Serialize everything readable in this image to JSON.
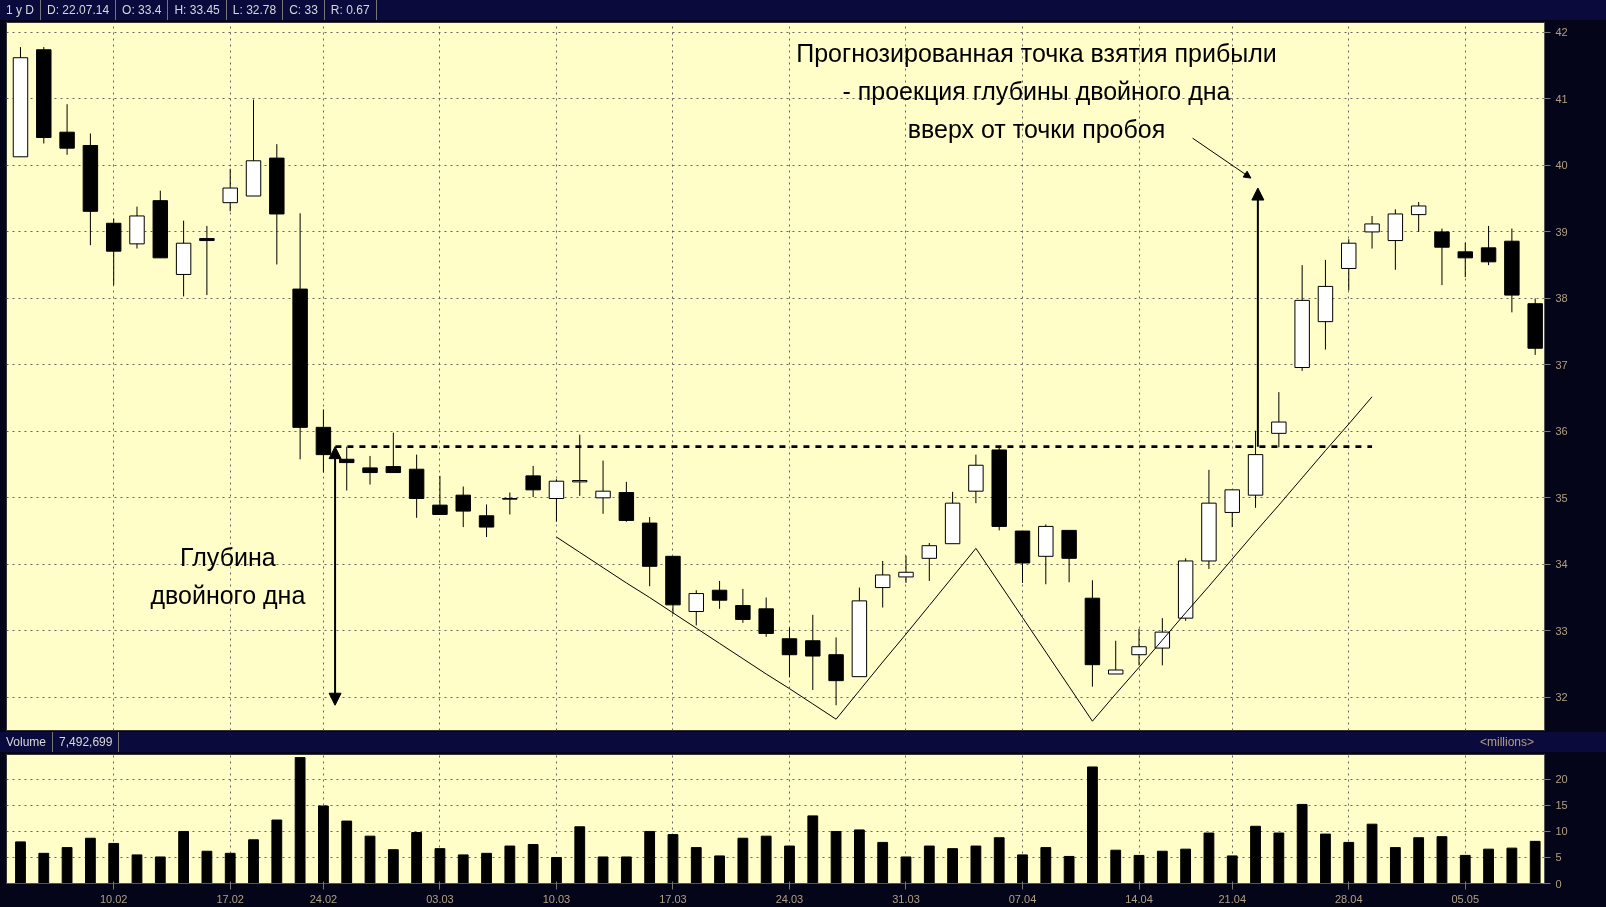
{
  "chart_data": [
    {
      "type": "candlestick",
      "annotations": [
        "1 y D",
        "D: 22.07.14",
        "O: 33.4",
        "H: 33.45",
        "L: 32.78",
        "C: 33",
        "R: 0.67",
        "Глубина\nдвойного дна",
        "Прогнозированная точка взятия прибыли\n- проекция глубины двойного дна\nвверх от точки пробоя"
      ],
      "categories": [
        null,
        null,
        null,
        null,
        "10.02",
        null,
        null,
        null,
        null,
        "17.02",
        null,
        null,
        null,
        "24.02",
        null,
        null,
        null,
        null,
        "03.03",
        null,
        null,
        null,
        null,
        "10.03",
        null,
        null,
        null,
        null,
        "17.03",
        null,
        null,
        null,
        null,
        "24.03",
        null,
        null,
        null,
        null,
        "31.03",
        null,
        null,
        null,
        null,
        "07.04",
        null,
        null,
        null,
        null,
        "14.04",
        null,
        null,
        null,
        "21.04",
        null,
        null,
        null,
        null,
        "28.04",
        null,
        null,
        null,
        null,
        "05.05",
        null,
        null,
        null
      ],
      "color": "#000000",
      "ohlc": [
        [
          40.13,
          41.78,
          40.13,
          41.62
        ],
        [
          41.74,
          41.78,
          40.33,
          40.42
        ],
        [
          40.5,
          40.92,
          40.16,
          40.26
        ],
        [
          40.3,
          40.48,
          38.8,
          39.31
        ],
        [
          39.13,
          39.2,
          38.2,
          38.71
        ],
        [
          38.82,
          39.38,
          38.75,
          39.24
        ],
        [
          39.47,
          39.62,
          38.61,
          38.61
        ],
        [
          38.36,
          39.17,
          38.03,
          38.83
        ],
        [
          38.9,
          39.09,
          38.05,
          38.87
        ],
        [
          39.44,
          39.95,
          39.31,
          39.66
        ],
        [
          39.54,
          40.99,
          39.54,
          40.07
        ],
        [
          40.11,
          40.32,
          38.51,
          39.27
        ],
        [
          38.14,
          39.28,
          35.58,
          36.06
        ],
        [
          36.06,
          36.33,
          35.38,
          35.65
        ],
        [
          35.58,
          35.77,
          35.11,
          35.53
        ],
        [
          35.45,
          35.63,
          35.2,
          35.38
        ],
        [
          35.47,
          35.98,
          35.38,
          35.38
        ],
        [
          35.43,
          35.65,
          34.7,
          34.99
        ],
        [
          34.89,
          35.33,
          34.75,
          34.75
        ],
        [
          35.04,
          35.17,
          34.56,
          34.8
        ],
        [
          34.73,
          34.9,
          34.41,
          34.56
        ],
        [
          34.99,
          35.08,
          34.75,
          34.98
        ],
        [
          35.33,
          35.48,
          35.01,
          35.12
        ],
        [
          34.99,
          35.28,
          34.64,
          35.25
        ],
        [
          35.24,
          35.95,
          35.03,
          35.26
        ],
        [
          35.0,
          35.56,
          34.76,
          35.1
        ],
        [
          35.08,
          35.24,
          34.64,
          34.66
        ],
        [
          34.62,
          34.71,
          33.67,
          33.97
        ],
        [
          34.12,
          34.12,
          33.25,
          33.39
        ],
        [
          33.29,
          33.61,
          33.08,
          33.56
        ],
        [
          33.61,
          33.75,
          33.33,
          33.46
        ],
        [
          33.38,
          33.63,
          33.12,
          33.17
        ],
        [
          33.33,
          33.5,
          32.91,
          32.96
        ],
        [
          32.88,
          33.05,
          32.3,
          32.64
        ],
        [
          32.85,
          33.24,
          32.11,
          32.62
        ],
        [
          32.64,
          32.9,
          31.88,
          32.25
        ],
        [
          32.31,
          33.65,
          32.31,
          33.45
        ],
        [
          33.65,
          34.05,
          33.35,
          33.84
        ],
        [
          33.81,
          34.13,
          33.72,
          33.88
        ],
        [
          34.09,
          34.32,
          33.75,
          34.28
        ],
        [
          34.31,
          35.09,
          34.31,
          34.92
        ],
        [
          35.1,
          35.65,
          34.92,
          35.49
        ],
        [
          35.72,
          35.77,
          34.51,
          34.57
        ],
        [
          34.5,
          34.5,
          33.72,
          34.02
        ],
        [
          34.12,
          34.6,
          33.7,
          34.57
        ],
        [
          34.51,
          34.51,
          33.73,
          34.09
        ],
        [
          33.49,
          33.76,
          32.16,
          32.49
        ],
        [
          32.35,
          32.85,
          32.35,
          32.41
        ],
        [
          32.64,
          33.03,
          32.48,
          32.76
        ],
        [
          32.74,
          33.19,
          32.48,
          32.98
        ],
        [
          33.19,
          34.09,
          33.15,
          34.05
        ],
        [
          34.05,
          35.42,
          33.93,
          34.92
        ],
        [
          34.78,
          35.12,
          34.56,
          35.12
        ],
        [
          35.04,
          36.01,
          34.85,
          35.65
        ],
        [
          35.97,
          36.59,
          35.76,
          36.14
        ],
        [
          36.96,
          38.5,
          36.91,
          37.97
        ],
        [
          37.65,
          38.58,
          37.23,
          38.18
        ],
        [
          38.45,
          38.89,
          38.12,
          38.83
        ],
        [
          39.0,
          39.24,
          38.75,
          39.12
        ],
        [
          38.87,
          39.34,
          38.43,
          39.27
        ],
        [
          39.26,
          39.45,
          39.0,
          39.39
        ],
        [
          39.0,
          39.05,
          38.2,
          38.77
        ],
        [
          38.7,
          38.84,
          38.32,
          38.61
        ],
        [
          38.76,
          39.09,
          38.5,
          38.55
        ],
        [
          38.86,
          39.05,
          37.79,
          38.05
        ],
        [
          37.92,
          38.0,
          37.15,
          37.25
        ]
      ],
      "series": [
        {
          "type": "line",
          "color": "#000000",
          "line_style": "solid",
          "values": [
            null,
            null,
            null,
            null,
            null,
            null,
            null,
            null,
            null,
            null,
            null,
            null,
            null,
            null,
            null,
            null,
            null,
            null,
            null,
            null,
            null,
            null,
            null,
            34.41,
            34.18,
            33.95,
            33.72,
            33.5,
            33.27,
            33.04,
            32.81,
            32.58,
            32.35,
            32.13,
            31.9,
            31.67,
            32.1,
            32.53,
            32.95,
            33.38,
            33.81,
            34.24,
            33.72,
            33.2,
            32.68,
            32.16,
            31.64,
            32.05,
            32.45,
            32.86,
            33.27,
            33.67,
            34.08,
            34.49,
            34.89,
            35.3,
            35.71,
            36.11,
            36.52,
            null,
            null,
            null,
            null,
            null,
            null,
            null
          ]
        },
        {
          "type": "line",
          "color": "#000000",
          "line_style": "dashed",
          "values": [
            null,
            null,
            null,
            null,
            null,
            null,
            null,
            null,
            null,
            null,
            null,
            null,
            null,
            35.77,
            35.77,
            35.77,
            35.77,
            35.77,
            35.77,
            35.77,
            35.77,
            35.77,
            35.77,
            35.77,
            35.77,
            35.77,
            35.77,
            35.77,
            35.77,
            35.77,
            35.77,
            35.77,
            35.77,
            35.77,
            35.77,
            35.77,
            35.77,
            35.77,
            35.77,
            35.77,
            35.77,
            35.77,
            35.77,
            35.77,
            35.77,
            35.77,
            35.77,
            35.77,
            35.77,
            35.77,
            35.77,
            35.77,
            35.77,
            35.77,
            35.77,
            35.77,
            35.77,
            35.77,
            35.77,
            null,
            null,
            null,
            null,
            null,
            null,
            null
          ]
        }
      ],
      "ylim": [
        31.5,
        42.15
      ],
      "yticks": [
        32,
        33,
        34,
        35,
        36,
        37,
        38,
        39,
        40,
        41,
        42
      ],
      "grid": true,
      "tick_labels": "y"
    },
    {
      "type": "bar",
      "annotations": [
        "Volume",
        "7,492,699"
      ],
      "ylabel": "<millions>",
      "categories": [
        null,
        null,
        null,
        null,
        "10.02",
        null,
        null,
        null,
        null,
        "17.02",
        null,
        null,
        null,
        "24.02",
        null,
        null,
        null,
        null,
        "03.03",
        null,
        null,
        null,
        null,
        "10.03",
        null,
        null,
        null,
        null,
        "17.03",
        null,
        null,
        null,
        null,
        "24.03",
        null,
        null,
        null,
        null,
        "31.03",
        null,
        null,
        null,
        null,
        "07.04",
        null,
        null,
        null,
        null,
        "14.04",
        null,
        null,
        null,
        "21.04",
        null,
        null,
        null,
        null,
        "28.04",
        null,
        null,
        null,
        null,
        "05.05",
        null,
        null,
        null
      ],
      "color": "#000000",
      "values": [
        8.0,
        5.8,
        6.9,
        8.7,
        7.7,
        5.5,
        5.1,
        10.0,
        6.2,
        5.8,
        8.4,
        12.2,
        24.2,
        14.9,
        12.0,
        9.1,
        6.5,
        9.8,
        6.7,
        5.5,
        5.8,
        7.2,
        7.5,
        5.0,
        10.9,
        5.1,
        5.1,
        10.0,
        9.4,
        6.9,
        5.3,
        8.7,
        9.1,
        7.2,
        13.0,
        10.0,
        10.3,
        7.9,
        5.1,
        7.2,
        6.7,
        7.2,
        8.8,
        5.5,
        6.9,
        5.2,
        22.4,
        6.4,
        5.4,
        6.2,
        6.6,
        9.7,
        5.3,
        11.0,
        9.7,
        15.2,
        9.5,
        7.9,
        11.4,
        6.9,
        8.8,
        9.0,
        5.4,
        6.6,
        6.8,
        8.1
      ],
      "ylim": [
        0,
        24.8
      ],
      "yticks": [
        0,
        5,
        10,
        15,
        20
      ],
      "grid": true
    }
  ]
}
